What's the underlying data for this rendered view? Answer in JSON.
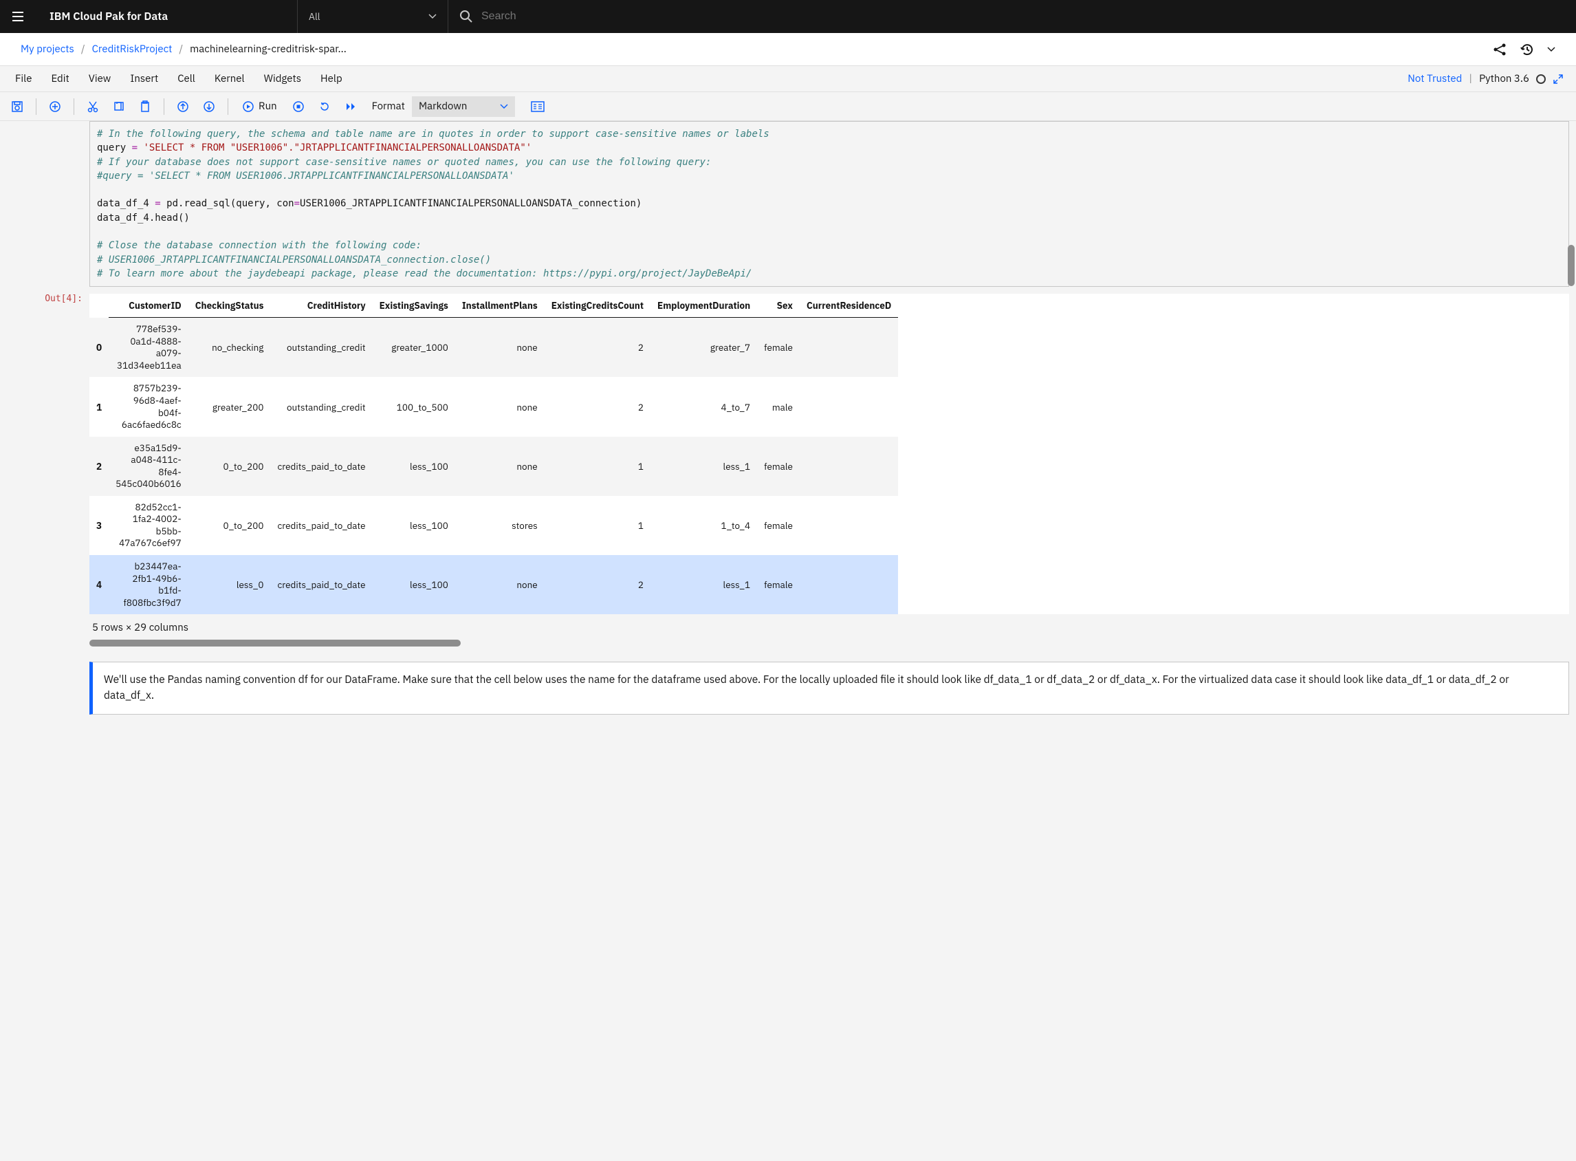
{
  "topbar": {
    "brand": "IBM Cloud Pak for Data",
    "scope": "All",
    "search_placeholder": "Search"
  },
  "breadcrumb": {
    "items": [
      "My projects",
      "CreditRiskProject",
      "machinelearning-creditrisk-spar..."
    ]
  },
  "menubar": {
    "items": [
      "File",
      "Edit",
      "View",
      "Insert",
      "Cell",
      "Kernel",
      "Widgets",
      "Help"
    ],
    "trust": "Not Trusted",
    "kernel": "Python 3.6"
  },
  "toolbar": {
    "run": "Run",
    "format_label": "Format",
    "format_value": "Markdown"
  },
  "code": {
    "l1": "# In the following query, the schema and table name are in quotes in order to support case-sensitive names or labels",
    "l2a": "query ",
    "l2b": "=",
    "l2c": " ",
    "l2d": "'SELECT * FROM \"USER1006\".\"JRTAPPLICANTFINANCIALPERSONALLOANSDATA\"'",
    "l3": "# If your database does not support case-sensitive names or quoted names, you can use the following query:",
    "l4": "#query = 'SELECT * FROM USER1006.JRTAPPLICANTFINANCIALPERSONALLOANSDATA'",
    "l6a": "data_df_4 ",
    "l6b": "=",
    "l6c": " pd.read_sql(query, con",
    "l6d": "=",
    "l6e": "USER1006_JRTAPPLICANTFINANCIALPERSONALLOANSDATA_connection)",
    "l7": "data_df_4.head()",
    "l9": "# Close the database connection with the following code:",
    "l10": "# USER1006_JRTAPPLICANTFINANCIALPERSONALLOANSDATA_connection.close()",
    "l11": "# To learn more about the jaydebeapi package, please read the documentation: https://pypi.org/project/JayDeBeApi/"
  },
  "output": {
    "prompt": "Out[4]:",
    "columns": [
      "",
      "CustomerID",
      "CheckingStatus",
      "CreditHistory",
      "ExistingSavings",
      "InstallmentPlans",
      "ExistingCreditsCount",
      "EmploymentDuration",
      "Sex",
      "CurrentResidenceD"
    ],
    "rows": [
      {
        "idx": "0",
        "CustomerID": "778ef539-\n0a1d-4888-\na079-\n31d34eeb11ea",
        "CheckingStatus": "no_checking",
        "CreditHistory": "outstanding_credit",
        "ExistingSavings": "greater_1000",
        "InstallmentPlans": "none",
        "ExistingCreditsCount": "2",
        "EmploymentDuration": "greater_7",
        "Sex": "female"
      },
      {
        "idx": "1",
        "CustomerID": "8757b239-\n96d8-4aef-\nb04f-\n6ac6faed6c8c",
        "CheckingStatus": "greater_200",
        "CreditHistory": "outstanding_credit",
        "ExistingSavings": "100_to_500",
        "InstallmentPlans": "none",
        "ExistingCreditsCount": "2",
        "EmploymentDuration": "4_to_7",
        "Sex": "male"
      },
      {
        "idx": "2",
        "CustomerID": "e35a15d9-\na048-411c-\n8fe4-\n545c040b6016",
        "CheckingStatus": "0_to_200",
        "CreditHistory": "credits_paid_to_date",
        "ExistingSavings": "less_100",
        "InstallmentPlans": "none",
        "ExistingCreditsCount": "1",
        "EmploymentDuration": "less_1",
        "Sex": "female"
      },
      {
        "idx": "3",
        "CustomerID": "82d52cc1-\n1fa2-4002-\nb5bb-\n47a767c6ef97",
        "CheckingStatus": "0_to_200",
        "CreditHistory": "credits_paid_to_date",
        "ExistingSavings": "less_100",
        "InstallmentPlans": "stores",
        "ExistingCreditsCount": "1",
        "EmploymentDuration": "1_to_4",
        "Sex": "female"
      },
      {
        "idx": "4",
        "CustomerID": "b23447ea-\n2fb1-49b6-\nb1fd-\nf808fbc3f9d7",
        "CheckingStatus": "less_0",
        "CreditHistory": "credits_paid_to_date",
        "ExistingSavings": "less_100",
        "InstallmentPlans": "none",
        "ExistingCreditsCount": "2",
        "EmploymentDuration": "less_1",
        "Sex": "female"
      }
    ],
    "footer": "5 rows × 29 columns"
  },
  "markdown": {
    "text": "We'll use the Pandas naming convention df for our DataFrame. Make sure that the cell below uses the name for the dataframe used above. For the locally uploaded file it should look like df_data_1 or df_data_2 or df_data_x. For the virtualized data case it should look like data_df_1 or data_df_2 or data_df_x."
  }
}
